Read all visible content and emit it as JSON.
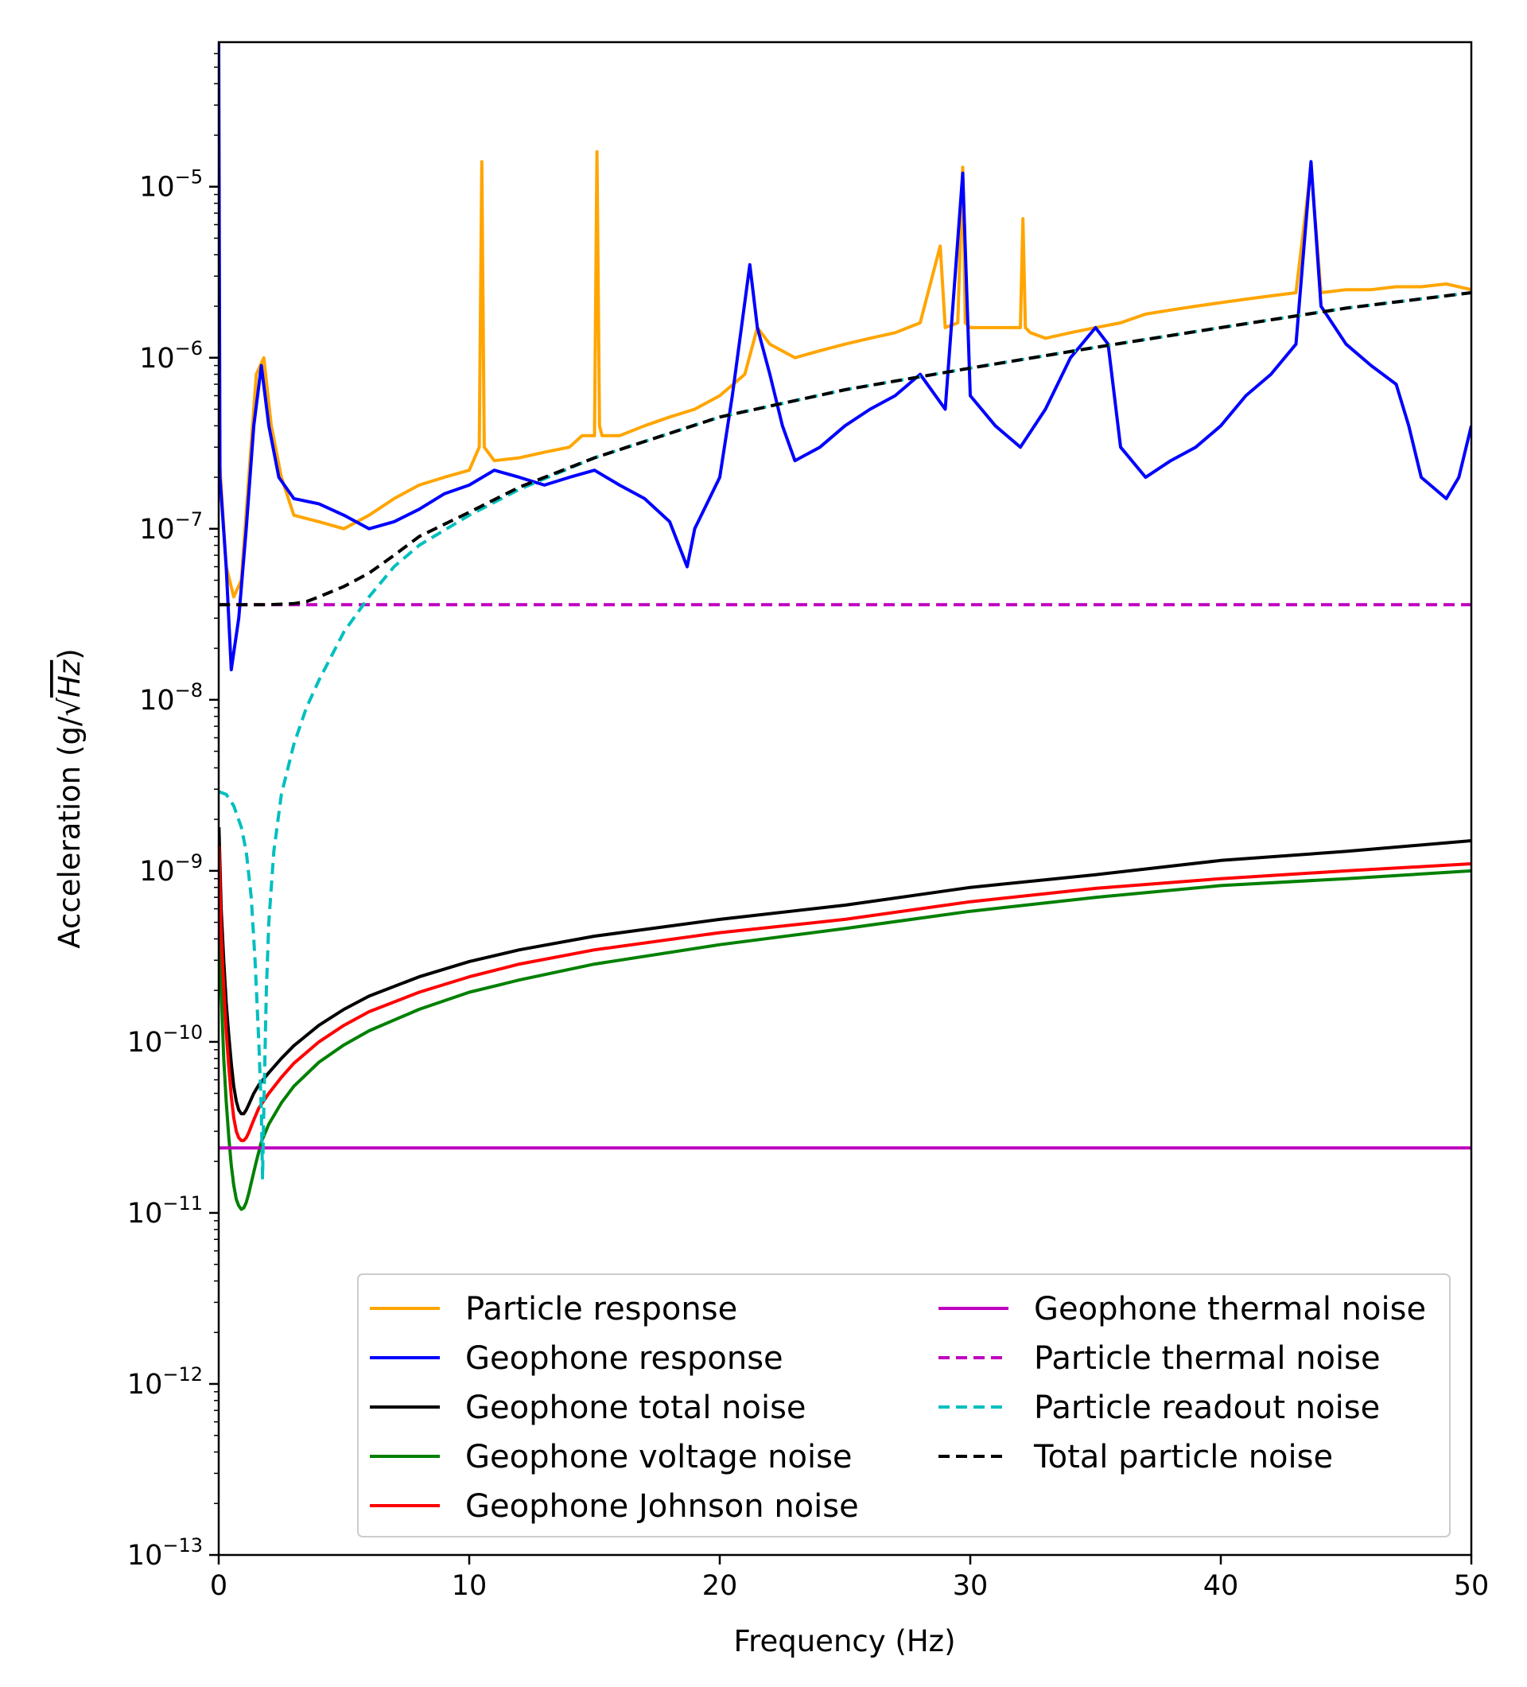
{
  "chart_data": {
    "type": "line",
    "title": "",
    "xlabel": "Frequency (Hz)",
    "ylabel_prefix": "Acceleration (g/",
    "ylabel_radicand": "Hz",
    "ylabel_suffix": ")",
    "xlim": [
      0,
      50
    ],
    "ylim": [
      1e-13,
      7e-05
    ],
    "yscale": "log",
    "grid": false,
    "legend_position": "lower-right",
    "legend_columns": 2,
    "x_ticks": [
      "0",
      "10",
      "20",
      "30",
      "40",
      "50"
    ],
    "y_ticks": [
      {
        "base": "10",
        "exp": "−5"
      },
      {
        "base": "10",
        "exp": "−6"
      },
      {
        "base": "10",
        "exp": "−7"
      },
      {
        "base": "10",
        "exp": "−8"
      },
      {
        "base": "10",
        "exp": "−9"
      },
      {
        "base": "10",
        "exp": "−10"
      },
      {
        "base": "10",
        "exp": "−11"
      },
      {
        "base": "10",
        "exp": "−12"
      },
      {
        "base": "10",
        "exp": "−13"
      }
    ],
    "series": [
      {
        "name": "Particle response",
        "color": "#FFA500",
        "dash": "solid",
        "x": [
          0,
          0.3,
          0.6,
          0.9,
          1.2,
          1.5,
          1.8,
          2.1,
          2.5,
          3,
          4,
          5,
          6,
          7,
          8,
          9,
          10,
          10.4,
          10.5,
          10.6,
          11,
          12,
          13,
          14,
          14.5,
          15,
          15.1,
          15.2,
          15.3,
          16,
          17,
          18,
          19,
          20,
          21,
          21.5,
          22,
          23,
          24,
          25,
          26,
          27,
          28,
          28.8,
          29,
          29.5,
          29.7,
          29.8,
          30,
          31,
          32,
          32.1,
          32.2,
          32.4,
          33,
          34,
          35,
          36,
          37,
          38,
          39,
          40,
          41,
          42,
          43,
          43.6,
          44,
          45,
          46,
          47,
          48,
          49,
          50
        ],
        "y": [
          3e-07,
          6e-08,
          4e-08,
          5e-08,
          2e-07,
          8e-07,
          1e-06,
          4e-07,
          2e-07,
          1.2e-07,
          1.1e-07,
          1e-07,
          1.2e-07,
          1.5e-07,
          1.8e-07,
          2e-07,
          2.2e-07,
          3e-07,
          1.4e-05,
          3e-07,
          2.5e-07,
          2.6e-07,
          2.8e-07,
          3e-07,
          3.5e-07,
          3.5e-07,
          1.6e-05,
          4e-07,
          3.5e-07,
          3.5e-07,
          4e-07,
          4.5e-07,
          5e-07,
          6e-07,
          8e-07,
          1.5e-06,
          1.2e-06,
          1e-06,
          1.1e-06,
          1.2e-06,
          1.3e-06,
          1.4e-06,
          1.6e-06,
          4.5e-06,
          1.5e-06,
          1.6e-06,
          1.3e-05,
          1.6e-06,
          1.5e-06,
          1.5e-06,
          1.5e-06,
          6.5e-06,
          1.5e-06,
          1.4e-06,
          1.3e-06,
          1.4e-06,
          1.5e-06,
          1.6e-06,
          1.8e-06,
          1.9e-06,
          2e-06,
          2.1e-06,
          2.2e-06,
          2.3e-06,
          2.4e-06,
          1.3e-05,
          2.4e-06,
          2.5e-06,
          2.5e-06,
          2.6e-06,
          2.6e-06,
          2.7e-06,
          2.5e-06
        ]
      },
      {
        "name": "Geophone response",
        "color": "#0000FF",
        "dash": "solid",
        "x": [
          0,
          0.05,
          0.3,
          0.5,
          0.8,
          1.1,
          1.4,
          1.7,
          2.0,
          2.4,
          3,
          4,
          5,
          6,
          7,
          8,
          9,
          10,
          11,
          12,
          13,
          14,
          15,
          16,
          17,
          18,
          18.7,
          19,
          20,
          20.5,
          21.2,
          21.5,
          22,
          22.5,
          23,
          24,
          25,
          26,
          27,
          28,
          29,
          29.7,
          30,
          31,
          32,
          33,
          34,
          35,
          35.5,
          36,
          37,
          38,
          39,
          40,
          41,
          42,
          43,
          43.6,
          44,
          45,
          46,
          47,
          47.5,
          48,
          49,
          49.5,
          50
        ],
        "y": [
          7e-05,
          2e-07,
          6e-08,
          1.5e-08,
          3e-08,
          1e-07,
          4e-07,
          9e-07,
          4e-07,
          2e-07,
          1.5e-07,
          1.4e-07,
          1.2e-07,
          1e-07,
          1.1e-07,
          1.3e-07,
          1.6e-07,
          1.8e-07,
          2.2e-07,
          2e-07,
          1.8e-07,
          2e-07,
          2.2e-07,
          1.8e-07,
          1.5e-07,
          1.1e-07,
          6e-08,
          1e-07,
          2e-07,
          6e-07,
          3.5e-06,
          1.5e-06,
          8e-07,
          4e-07,
          2.5e-07,
          3e-07,
          4e-07,
          5e-07,
          6e-07,
          8e-07,
          5e-07,
          1.2e-05,
          6e-07,
          4e-07,
          3e-07,
          5e-07,
          1e-06,
          1.5e-06,
          1.2e-06,
          3e-07,
          2e-07,
          2.5e-07,
          3e-07,
          4e-07,
          6e-07,
          8e-07,
          1.2e-06,
          1.4e-05,
          2e-06,
          1.2e-06,
          9e-07,
          7e-07,
          4e-07,
          2e-07,
          1.5e-07,
          2e-07,
          4e-07
        ]
      },
      {
        "name": "Geophone  total noise",
        "color": "#000000",
        "dash": "solid",
        "x": [
          0.01,
          0.1,
          0.2,
          0.3,
          0.4,
          0.5,
          0.6,
          0.7,
          0.8,
          0.9,
          1.0,
          1.1,
          1.2,
          1.4,
          1.6,
          2,
          2.5,
          3,
          4,
          5,
          6,
          8,
          10,
          12,
          15,
          20,
          25,
          30,
          35,
          40,
          45,
          50
        ],
        "y": [
          1.8e-09,
          6e-10,
          3e-10,
          1.7e-10,
          1.1e-10,
          7.5e-11,
          5.5e-11,
          4.5e-11,
          4e-11,
          3.8e-11,
          3.8e-11,
          4e-11,
          4.3e-11,
          5e-11,
          5.6e-11,
          6.6e-11,
          8e-11,
          9.5e-11,
          1.25e-10,
          1.55e-10,
          1.85e-10,
          2.4e-10,
          2.95e-10,
          3.45e-10,
          4.15e-10,
          5.2e-10,
          6.3e-10,
          8e-10,
          9.5e-10,
          1.15e-09,
          1.3e-09,
          1.5e-09
        ]
      },
      {
        "name": "Geophone voltage noise",
        "color": "#008000",
        "dash": "solid",
        "x": [
          0.01,
          0.1,
          0.2,
          0.3,
          0.4,
          0.5,
          0.6,
          0.7,
          0.8,
          0.9,
          1.0,
          1.1,
          1.2,
          1.3,
          1.5,
          1.7,
          2,
          2.5,
          3,
          4,
          5,
          6,
          8,
          10,
          12,
          15,
          20,
          25,
          30,
          35,
          40,
          45,
          50
        ],
        "y": [
          8e-10,
          2e-10,
          8e-11,
          4.5e-11,
          2.8e-11,
          1.9e-11,
          1.45e-11,
          1.2e-11,
          1.1e-11,
          1.05e-11,
          1.07e-11,
          1.15e-11,
          1.3e-11,
          1.5e-11,
          2e-11,
          2.6e-11,
          3.3e-11,
          4.4e-11,
          5.5e-11,
          7.6e-11,
          9.6e-11,
          1.16e-10,
          1.55e-10,
          1.95e-10,
          2.3e-10,
          2.85e-10,
          3.7e-10,
          4.6e-10,
          5.8e-10,
          7e-10,
          8.2e-10,
          9e-10,
          1e-09
        ]
      },
      {
        "name": "Geophone Johnson noise",
        "color": "#FF0000",
        "dash": "solid",
        "x": [
          0.01,
          0.1,
          0.2,
          0.3,
          0.4,
          0.5,
          0.6,
          0.7,
          0.8,
          0.9,
          1.0,
          1.1,
          1.2,
          1.4,
          1.6,
          2,
          2.5,
          3,
          4,
          5,
          6,
          8,
          10,
          12,
          15,
          20,
          25,
          30,
          35,
          40,
          45,
          50
        ],
        "y": [
          1.4e-09,
          4.3e-10,
          2.1e-10,
          1.15e-10,
          7.2e-11,
          4.8e-11,
          3.6e-11,
          3e-11,
          2.75e-11,
          2.65e-11,
          2.65e-11,
          2.75e-11,
          2.95e-11,
          3.5e-11,
          4.1e-11,
          5e-11,
          6.2e-11,
          7.5e-11,
          1e-10,
          1.25e-10,
          1.5e-10,
          1.95e-10,
          2.4e-10,
          2.85e-10,
          3.45e-10,
          4.35e-10,
          5.2e-10,
          6.6e-10,
          7.9e-10,
          9e-10,
          1e-09,
          1.1e-09
        ]
      },
      {
        "name": "Geophone thermal noise",
        "color": "#BF00BF",
        "dash": "solid",
        "x": [
          0,
          50
        ],
        "y": [
          2.4e-11,
          2.4e-11
        ]
      },
      {
        "name": "Particle thermal noise",
        "color": "#BF00BF",
        "dash": "dashed",
        "x": [
          0,
          50
        ],
        "y": [
          3.6e-08,
          3.6e-08
        ]
      },
      {
        "name": "Particle readout noise",
        "color": "#00BFBF",
        "dash": "dashed",
        "x": [
          0.01,
          0.3,
          0.6,
          0.9,
          1.1,
          1.3,
          1.45,
          1.6,
          1.7,
          1.75,
          1.8,
          1.9,
          2.0,
          2.2,
          2.5,
          3,
          3.5,
          4,
          5,
          6,
          7,
          8,
          10,
          12,
          15,
          20,
          25,
          30,
          35,
          40,
          45,
          50
        ],
        "y": [
          2.9e-09,
          2.8e-09,
          2.4e-09,
          1.8e-09,
          1.3e-09,
          7e-10,
          3e-10,
          1e-10,
          4e-11,
          1.6e-11,
          4e-11,
          2e-10,
          5e-10,
          1.3e-09,
          2.8e-09,
          5.5e-09,
          9e-09,
          1.3e-08,
          2.5e-08,
          4e-08,
          6e-08,
          8e-08,
          1.2e-07,
          1.7e-07,
          2.6e-07,
          4.5e-07,
          6.5e-07,
          8.7e-07,
          1.15e-06,
          1.5e-06,
          1.95e-06,
          2.4e-06
        ]
      },
      {
        "name": "Total particle noise",
        "color": "#000000",
        "dash": "dashed",
        "x": [
          0.01,
          1,
          2,
          3,
          3.5,
          4,
          5,
          6,
          7,
          8,
          10,
          12,
          15,
          20,
          25,
          30,
          35,
          40,
          45,
          50
        ],
        "y": [
          3.6e-08,
          3.6e-08,
          3.6e-08,
          3.65e-08,
          3.75e-08,
          4e-08,
          4.6e-08,
          5.5e-08,
          7e-08,
          9e-08,
          1.25e-07,
          1.75e-07,
          2.6e-07,
          4.5e-07,
          6.5e-07,
          8.7e-07,
          1.15e-06,
          1.5e-06,
          1.95e-06,
          2.4e-06
        ]
      }
    ]
  }
}
